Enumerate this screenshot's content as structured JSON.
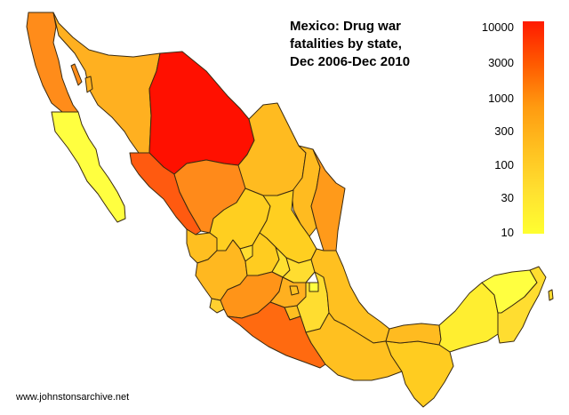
{
  "map": {
    "title_lines": [
      "Mexico:  Drug war",
      "fatalities by state,",
      "Dec 2006-Dec 2010"
    ],
    "credit": "www.johnstonsarchive.net",
    "legend": {
      "scale": "log",
      "ticks": [
        "10000",
        "3000",
        "1000",
        "300",
        "100",
        "30",
        "10"
      ],
      "gradient": [
        "#ff1a00",
        "#ff5a00",
        "#ff9a10",
        "#ffc020",
        "#ffe030",
        "#ffff30"
      ]
    },
    "regions": [
      {
        "name": "Baja California",
        "color": "#ff8c1a"
      },
      {
        "name": "Baja California Sur",
        "color": "#ffff40"
      },
      {
        "name": "Sonora",
        "color": "#ffb020"
      },
      {
        "name": "Chihuahua",
        "color": "#ff1000"
      },
      {
        "name": "Coahuila",
        "color": "#ffbb20"
      },
      {
        "name": "Nuevo León",
        "color": "#ffbb20"
      },
      {
        "name": "Tamaulipas",
        "color": "#ff9a1a"
      },
      {
        "name": "Sinaloa",
        "color": "#ff5a10"
      },
      {
        "name": "Durango",
        "color": "#ff8a1a"
      },
      {
        "name": "Nayarit",
        "color": "#ffbf20"
      },
      {
        "name": "Zacatecas",
        "color": "#ffcf20"
      },
      {
        "name": "San Luis Potosí",
        "color": "#ffcf20"
      },
      {
        "name": "Jalisco",
        "color": "#ffb820"
      },
      {
        "name": "Aguascalientes",
        "color": "#ffdd30"
      },
      {
        "name": "Guanajuato",
        "color": "#ffcc20"
      },
      {
        "name": "Querétaro",
        "color": "#ffe030"
      },
      {
        "name": "Hidalgo",
        "color": "#ffdd30"
      },
      {
        "name": "Colima",
        "color": "#ffd030"
      },
      {
        "name": "Michoacán",
        "color": "#ff9418"
      },
      {
        "name": "Estado de México",
        "color": "#ffb020"
      },
      {
        "name": "Distrito Federal",
        "color": "#ffc020"
      },
      {
        "name": "Morelos",
        "color": "#ffbf20"
      },
      {
        "name": "Tlaxcala",
        "color": "#ffff40"
      },
      {
        "name": "Puebla",
        "color": "#ffdd30"
      },
      {
        "name": "Veracruz",
        "color": "#ffc020"
      },
      {
        "name": "Guerrero",
        "color": "#ff6a10"
      },
      {
        "name": "Oaxaca",
        "color": "#ffc020"
      },
      {
        "name": "Chiapas",
        "color": "#ffcc20"
      },
      {
        "name": "Tabasco",
        "color": "#ffbb20"
      },
      {
        "name": "Campeche",
        "color": "#ffee30"
      },
      {
        "name": "Yucatán",
        "color": "#ffff40"
      },
      {
        "name": "Quintana Roo",
        "color": "#ffdd30"
      }
    ]
  }
}
